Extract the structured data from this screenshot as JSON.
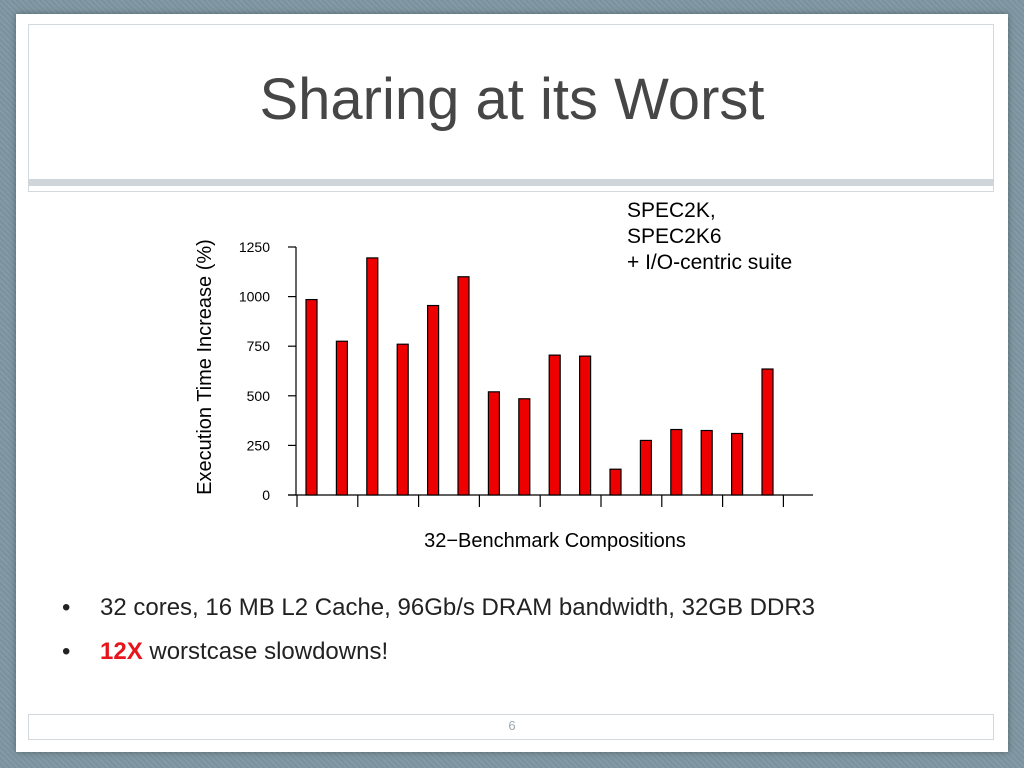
{
  "slide": {
    "title": "Sharing at its Worst",
    "page_number": "6"
  },
  "note_lines": [
    "SPEC2K,",
    "SPEC2K6",
    "+ I/O-centric suite"
  ],
  "bullets": [
    {
      "marker": "•",
      "highlight": "",
      "text": "32 cores, 16 MB L2 Cache, 96Gb/s DRAM bandwidth, 32GB DDR3"
    },
    {
      "marker": "•",
      "highlight": "12X",
      "text": " worstcase slowdowns!"
    }
  ],
  "colors": {
    "bar": "#ee0000",
    "highlight": "#e8141b"
  },
  "chart_data": {
    "type": "bar",
    "title": "",
    "xlabel": "32−Benchmark Compositions",
    "ylabel": "Execution Time Increase (%)",
    "ylim": [
      0,
      1250
    ],
    "yticks": [
      0,
      250,
      500,
      750,
      1000,
      1250
    ],
    "x_tick_labels": false,
    "grid": false,
    "series": [
      {
        "values": [
          985,
          775,
          1195,
          760,
          955,
          1100,
          520,
          485,
          705,
          700,
          130,
          275,
          330,
          325,
          310,
          635
        ]
      }
    ]
  }
}
